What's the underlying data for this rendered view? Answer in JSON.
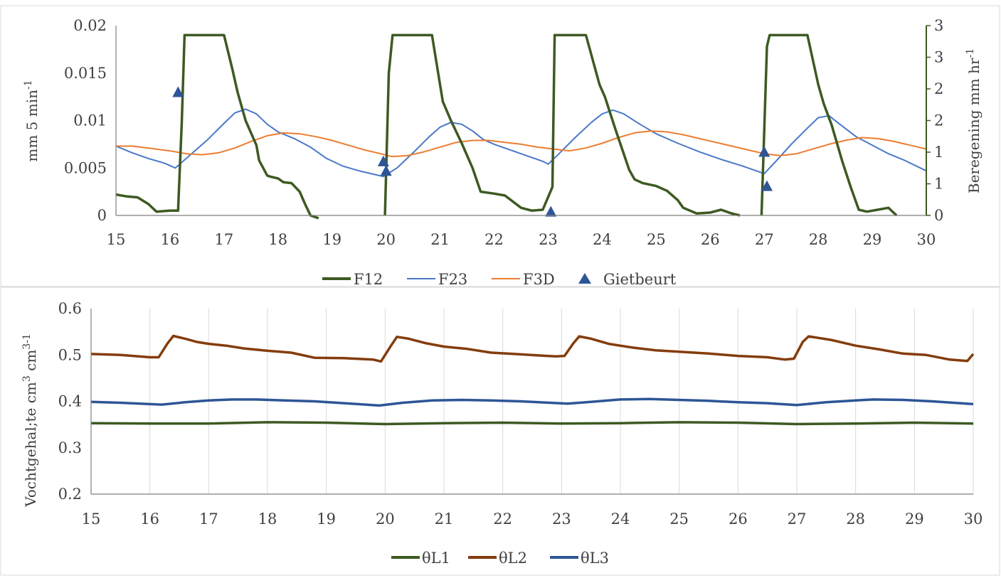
{
  "chart_data": [
    {
      "type": "line",
      "ylabel": "mm 5 min-1",
      "ylabel_main": "mm 5 min",
      "ylabel_sup": "-1",
      "y2label": "Beregening  mm hr-1",
      "y2label_main": "Beregening  mm hr",
      "y2label_sup": "-1",
      "xlim": [
        15,
        30
      ],
      "ylim": [
        0,
        0.02
      ],
      "y2lim": [
        0,
        3
      ],
      "xticks": [
        "15",
        "16",
        "17",
        "18",
        "19",
        "20",
        "21",
        "22",
        "23",
        "24",
        "25",
        "26",
        "27",
        "28",
        "29",
        "30"
      ],
      "yticks": [
        "0",
        "0.005",
        "0.01",
        "0.015",
        "0.02"
      ],
      "y2ticks": [
        "0",
        "1",
        "1",
        "2",
        "2",
        "3",
        "3"
      ],
      "legend_position": "bottom",
      "colors": {
        "F12": "#3d5a22",
        "F23": "#4a78c8",
        "F3D": "#ed7d31",
        "Gietbeurt": "#2e5597"
      },
      "series": [
        {
          "name": "F12",
          "axis": "y",
          "x": [
            15.0,
            15.2,
            15.4,
            15.6,
            15.75,
            16.0,
            16.15,
            16.22,
            16.27,
            16.4,
            16.6,
            17.0,
            17.15,
            17.25,
            17.4,
            17.6,
            17.65,
            17.8,
            17.85,
            18.0,
            18.1,
            18.25,
            18.4,
            18.5,
            18.6,
            18.75
          ],
          "y": [
            0.0022,
            0.002,
            0.0019,
            0.0012,
            0.0004,
            0.0005,
            0.0005,
            0.01,
            0.019,
            0.019,
            0.019,
            0.019,
            0.0155,
            0.013,
            0.01,
            0.0074,
            0.0058,
            0.0042,
            0.0041,
            0.0039,
            0.0035,
            0.0034,
            0.0025,
            0.0012,
            0.0,
            -0.0005
          ]
        },
        {
          "name": "F12",
          "axis": "y",
          "x": [
            19.98,
            20.05,
            20.12,
            20.3,
            20.5,
            20.85,
            20.95,
            21.05,
            21.2,
            21.4,
            21.6,
            21.75,
            22.0,
            22.2,
            22.5,
            22.7,
            22.9,
            23.08,
            23.12,
            23.18,
            23.3,
            23.5,
            23.7,
            23.95,
            24.05,
            24.25,
            24.5,
            24.6,
            24.75,
            25.0,
            25.2,
            25.4,
            25.5,
            25.75,
            26.0,
            26.2,
            26.4,
            26.55
          ],
          "y": [
            0.0,
            0.015,
            0.019,
            0.019,
            0.019,
            0.019,
            0.0155,
            0.012,
            0.01,
            0.0076,
            0.005,
            0.0025,
            0.0023,
            0.0021,
            0.0008,
            0.0005,
            0.0006,
            0.003,
            0.019,
            0.019,
            0.019,
            0.019,
            0.019,
            0.0138,
            0.0125,
            0.009,
            0.0048,
            0.0038,
            0.0034,
            0.0031,
            0.0026,
            0.0016,
            0.0008,
            0.0002,
            0.0003,
            0.0006,
            0.0002,
            0.0
          ]
        },
        {
          "name": "F12",
          "axis": "y",
          "x": [
            26.95,
            27.05,
            27.1,
            27.2,
            27.4,
            27.8,
            28.0,
            28.1,
            28.25,
            28.45,
            28.6,
            28.75,
            28.9,
            29.1,
            29.3,
            29.45
          ],
          "y": [
            0.0,
            0.0178,
            0.019,
            0.019,
            0.019,
            0.019,
            0.0138,
            0.0118,
            0.0095,
            0.0056,
            0.003,
            0.0006,
            0.0004,
            0.0006,
            0.0008,
            0.0
          ]
        },
        {
          "name": "F23",
          "axis": "y",
          "x": [
            15.0,
            15.3,
            15.6,
            15.9,
            16.1,
            16.4,
            16.7,
            17.0,
            17.2,
            17.4,
            17.6,
            17.8,
            18.0,
            18.3,
            18.6,
            18.9,
            19.2,
            19.5,
            19.8,
            19.95,
            20.2,
            20.5,
            20.8,
            21.0,
            21.2,
            21.4,
            21.6,
            21.8,
            22.0,
            22.3,
            22.6,
            22.9,
            23.0,
            23.2,
            23.5,
            23.8,
            24.0,
            24.2,
            24.4,
            24.7,
            25.0,
            25.4,
            25.8,
            26.2,
            26.6,
            26.9,
            27.0,
            27.2,
            27.5,
            27.8,
            28.0,
            28.2,
            28.4,
            28.7,
            29.0,
            29.3,
            29.6,
            30.0
          ],
          "y": [
            0.0073,
            0.0066,
            0.006,
            0.0055,
            0.005,
            0.0065,
            0.008,
            0.0097,
            0.0108,
            0.0112,
            0.0107,
            0.0096,
            0.0088,
            0.0081,
            0.0072,
            0.006,
            0.0052,
            0.0047,
            0.0043,
            0.0041,
            0.005,
            0.0066,
            0.0083,
            0.0093,
            0.0098,
            0.0096,
            0.0089,
            0.008,
            0.0075,
            0.0069,
            0.0063,
            0.0057,
            0.0054,
            0.0065,
            0.0082,
            0.0098,
            0.0107,
            0.0111,
            0.0107,
            0.0096,
            0.0086,
            0.0076,
            0.0067,
            0.0059,
            0.0052,
            0.0046,
            0.0044,
            0.0056,
            0.0075,
            0.0092,
            0.0103,
            0.0105,
            0.0096,
            0.0083,
            0.0074,
            0.0065,
            0.0058,
            0.0047
          ]
        },
        {
          "name": "F3D",
          "axis": "y",
          "x": [
            15.0,
            15.3,
            15.6,
            16.0,
            16.3,
            16.6,
            16.9,
            17.2,
            17.5,
            17.8,
            18.1,
            18.4,
            18.7,
            19.0,
            19.3,
            19.6,
            19.9,
            20.1,
            20.4,
            20.7,
            21.0,
            21.3,
            21.6,
            21.9,
            22.2,
            22.5,
            22.8,
            23.1,
            23.4,
            23.7,
            24.0,
            24.3,
            24.6,
            24.9,
            25.2,
            25.5,
            25.8,
            26.1,
            26.4,
            26.7,
            27.0,
            27.3,
            27.6,
            27.9,
            28.2,
            28.5,
            28.8,
            29.1,
            29.4,
            29.7,
            30.0
          ],
          "y": [
            0.0073,
            0.0073,
            0.0071,
            0.0068,
            0.0065,
            0.0064,
            0.0066,
            0.0071,
            0.0078,
            0.0084,
            0.0087,
            0.0086,
            0.0083,
            0.0079,
            0.0074,
            0.0069,
            0.0065,
            0.0062,
            0.0063,
            0.0067,
            0.0072,
            0.0077,
            0.0079,
            0.0079,
            0.0077,
            0.0075,
            0.0072,
            0.007,
            0.0068,
            0.0071,
            0.0076,
            0.0082,
            0.0087,
            0.0089,
            0.0088,
            0.0085,
            0.0081,
            0.0077,
            0.0073,
            0.0069,
            0.0065,
            0.0063,
            0.0065,
            0.007,
            0.0075,
            0.0079,
            0.0082,
            0.0081,
            0.0078,
            0.0074,
            0.007
          ]
        },
        {
          "name": "Gietbeurt",
          "type": "scatter",
          "axis": "y",
          "x": [
            16.15,
            19.95,
            20.0,
            23.05,
            27.0,
            27.05
          ],
          "y": [
            0.013,
            0.0057,
            0.0047,
            0.0004,
            0.0067,
            0.0031
          ]
        }
      ]
    },
    {
      "type": "line",
      "ylabel": "Vochtgehal;te  cm3 cm3-1",
      "ylabel_main": "Vochtgehal;te  cm",
      "ylabel_sup1": "3",
      "ylabel_mid": " cm",
      "ylabel_sup2": "3-1",
      "xlim": [
        15,
        30
      ],
      "ylim": [
        0.2,
        0.6
      ],
      "xticks": [
        "15",
        "16",
        "17",
        "18",
        "19",
        "20",
        "21",
        "22",
        "23",
        "24",
        "25",
        "26",
        "27",
        "28",
        "29",
        "30"
      ],
      "yticks": [
        "0.2",
        "0.3",
        "0.4",
        "0.5",
        "0.6"
      ],
      "grid": "vertical",
      "legend_position": "bottom",
      "colors": {
        "θL1": "#3d5a22",
        "θL2": "#843c0c",
        "θL3": "#2e5597"
      },
      "series": [
        {
          "name": "θL1",
          "x": [
            15,
            16,
            17,
            18,
            19,
            20,
            21,
            22,
            23,
            24,
            25,
            26,
            27,
            28,
            29,
            30
          ],
          "y": [
            0.353,
            0.352,
            0.352,
            0.355,
            0.354,
            0.351,
            0.353,
            0.354,
            0.352,
            0.353,
            0.355,
            0.354,
            0.351,
            0.352,
            0.354,
            0.352
          ]
        },
        {
          "name": "θL2",
          "x": [
            15.0,
            15.5,
            16.0,
            16.15,
            16.3,
            16.4,
            16.6,
            16.8,
            17.0,
            17.3,
            17.6,
            18.0,
            18.4,
            18.8,
            19.3,
            19.8,
            19.93,
            20.1,
            20.2,
            20.4,
            20.7,
            21.0,
            21.4,
            21.8,
            22.2,
            22.6,
            22.9,
            23.05,
            23.2,
            23.3,
            23.5,
            23.8,
            24.2,
            24.6,
            25.0,
            25.5,
            26.0,
            26.5,
            26.8,
            26.95,
            27.1,
            27.2,
            27.6,
            28.0,
            28.4,
            28.8,
            29.2,
            29.6,
            29.9,
            30.0
          ],
          "y": [
            0.502,
            0.5,
            0.495,
            0.495,
            0.525,
            0.541,
            0.535,
            0.528,
            0.524,
            0.52,
            0.514,
            0.509,
            0.505,
            0.494,
            0.493,
            0.49,
            0.486,
            0.52,
            0.539,
            0.535,
            0.525,
            0.518,
            0.513,
            0.505,
            0.502,
            0.499,
            0.497,
            0.498,
            0.525,
            0.54,
            0.535,
            0.524,
            0.516,
            0.51,
            0.507,
            0.503,
            0.498,
            0.495,
            0.49,
            0.492,
            0.528,
            0.54,
            0.532,
            0.52,
            0.512,
            0.503,
            0.5,
            0.49,
            0.487,
            0.502
          ]
        },
        {
          "name": "θL3",
          "x": [
            15.0,
            15.5,
            16.0,
            16.2,
            16.6,
            17.0,
            17.4,
            17.8,
            18.3,
            18.8,
            19.3,
            19.9,
            20.3,
            20.8,
            21.3,
            21.8,
            22.3,
            22.8,
            23.1,
            23.5,
            24.0,
            24.5,
            25.0,
            25.5,
            26.0,
            26.5,
            27.0,
            27.5,
            28.0,
            28.3,
            28.8,
            29.3,
            30.0
          ],
          "y": [
            0.399,
            0.397,
            0.394,
            0.393,
            0.398,
            0.402,
            0.404,
            0.404,
            0.402,
            0.4,
            0.396,
            0.391,
            0.397,
            0.402,
            0.403,
            0.402,
            0.4,
            0.397,
            0.395,
            0.399,
            0.404,
            0.405,
            0.403,
            0.401,
            0.398,
            0.396,
            0.392,
            0.398,
            0.402,
            0.404,
            0.403,
            0.4,
            0.394
          ]
        }
      ]
    }
  ]
}
